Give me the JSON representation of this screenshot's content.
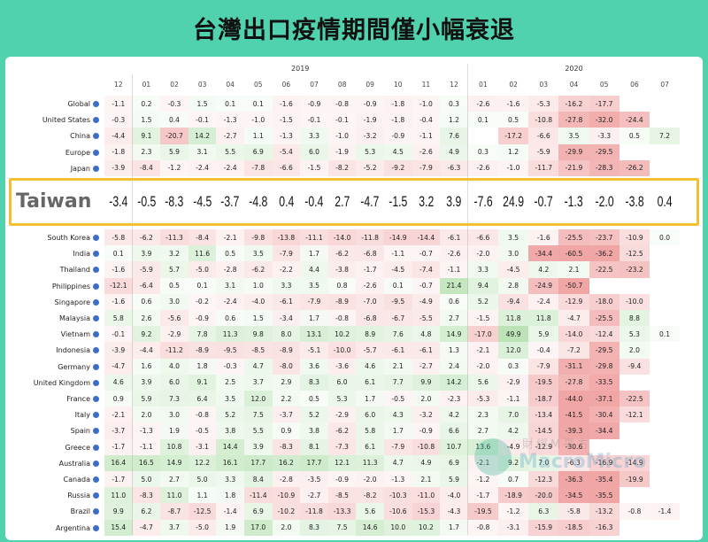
{
  "title": "台灣出口疫情期間僅小幅衰退",
  "watermark": {
    "line1": "財經M平方",
    "line2": "MacroMicro"
  },
  "chart_data": {
    "type": "table",
    "years": [
      {
        "label": "2019",
        "start": 1,
        "end": 12
      },
      {
        "label": "2020",
        "start": 13,
        "end": 19
      }
    ],
    "months": [
      "12",
      "01",
      "02",
      "03",
      "04",
      "05",
      "06",
      "07",
      "08",
      "09",
      "10",
      "11",
      "12",
      "01",
      "02",
      "03",
      "04",
      "05",
      "06",
      "07"
    ],
    "rows": [
      {
        "name": "Global",
        "values": [
          "-1.1",
          "0.2",
          "-0.3",
          "1.5",
          "0.1",
          "0.1",
          "-1.6",
          "-0.9",
          "-0.8",
          "-0.9",
          "-1.8",
          "-1.0",
          "0.3",
          "-2.6",
          "-1.6",
          "-5.3",
          "-16.2",
          "-17.7",
          "",
          ""
        ]
      },
      {
        "name": "United States",
        "values": [
          "-0.3",
          "1.5",
          "0.4",
          "-0.1",
          "-1.3",
          "-1.0",
          "-1.5",
          "-0.1",
          "-0.1",
          "-1.9",
          "-1.8",
          "-0.4",
          "1.2",
          "0.1",
          "0.5",
          "-10.8",
          "-27.8",
          "-32.0",
          "-24.4",
          ""
        ]
      },
      {
        "name": "China",
        "values": [
          "-4.4",
          "9.1",
          "-20.7",
          "14.2",
          "-2.7",
          "1.1",
          "-1.3",
          "3.3",
          "-1.0",
          "-3.2",
          "-0.9",
          "-1.1",
          "7.6",
          "",
          "-17.2",
          "-6.6",
          "3.5",
          "-3.3",
          "0.5",
          "7.2"
        ]
      },
      {
        "name": "Europe",
        "values": [
          "-1.8",
          "2.3",
          "5.9",
          "3.1",
          "5.5",
          "6.9",
          "-5.4",
          "6.0",
          "-1.9",
          "5.3",
          "4.5",
          "-2.6",
          "4.9",
          "0.3",
          "1.2",
          "-5.9",
          "-29.9",
          "-29.5",
          "",
          ""
        ]
      },
      {
        "name": "Japan",
        "values": [
          "-3.9",
          "-8.4",
          "-1.2",
          "-2.4",
          "-2.4",
          "-7.8",
          "-6.6",
          "-1.5",
          "-8.2",
          "-5.2",
          "-9.2",
          "-7.9",
          "-6.3",
          "-2.6",
          "-1.0",
          "-11.7",
          "-21.9",
          "-28.3",
          "-26.2",
          ""
        ]
      },
      {
        "name": "Taiwan",
        "highlight": true,
        "values": [
          "-3.4",
          "-0.5",
          "-8.3",
          "-4.5",
          "-3.7",
          "-4.8",
          "0.4",
          "-0.4",
          "2.7",
          "-4.7",
          "-1.5",
          "3.2",
          "3.9",
          "-7.6",
          "24.9",
          "-0.7",
          "-1.3",
          "-2.0",
          "-3.8",
          "0.4"
        ]
      },
      {
        "name": "South Korea",
        "values": [
          "-5.8",
          "-6.2",
          "-11.3",
          "-8.4",
          "-2.1",
          "-9.8",
          "-13.8",
          "-11.1",
          "-14.0",
          "-11.8",
          "-14.9",
          "-14.4",
          "-6.1",
          "-6.6",
          "3.5",
          "-1.6",
          "-25.5",
          "-23.7",
          "-10.9",
          "0.0"
        ]
      },
      {
        "name": "India",
        "values": [
          "0.1",
          "3.9",
          "3.2",
          "11.6",
          "0.5",
          "3.5",
          "-7.9",
          "1.7",
          "-6.2",
          "-6.8",
          "-1.1",
          "-0.7",
          "-2.6",
          "-2.0",
          "3.0",
          "-34.4",
          "-60.5",
          "-36.2",
          "-12.5",
          ""
        ]
      },
      {
        "name": "Thailand",
        "values": [
          "-1.6",
          "-5.9",
          "5.7",
          "-5.0",
          "-2.8",
          "-6.2",
          "-2.2",
          "4.4",
          "-3.8",
          "-1.7",
          "-4.5",
          "-7.4",
          "-1.1",
          "3.3",
          "-4.5",
          "4.2",
          "2.1",
          "-22.5",
          "-23.2",
          ""
        ]
      },
      {
        "name": "Philippines",
        "values": [
          "-12.1",
          "-6.4",
          "0.5",
          "0.1",
          "3.1",
          "1.0",
          "3.3",
          "3.5",
          "0.8",
          "-2.6",
          "0.1",
          "-0.7",
          "21.4",
          "9.4",
          "2.8",
          "-24.9",
          "-50.7",
          "",
          "",
          ""
        ]
      },
      {
        "name": "Singapore",
        "values": [
          "-1.6",
          "0.6",
          "3.0",
          "-0.2",
          "-2.4",
          "-4.0",
          "-6.1",
          "-7.9",
          "-8.9",
          "-7.0",
          "-9.5",
          "-4.9",
          "0.6",
          "5.2",
          "-9.4",
          "-2.4",
          "-12.9",
          "-18.0",
          "-10.0",
          ""
        ]
      },
      {
        "name": "Malaysia",
        "values": [
          "5.8",
          "2.6",
          "-5.6",
          "-0.9",
          "0.6",
          "1.5",
          "-3.4",
          "1.7",
          "-0.8",
          "-6.8",
          "-6.7",
          "-5.5",
          "2.7",
          "-1.5",
          "11.8",
          "11.8",
          "-4.7",
          "-25.5",
          "8.8",
          ""
        ]
      },
      {
        "name": "Vietnam",
        "values": [
          "-0.1",
          "9.2",
          "-2.9",
          "7.8",
          "11.3",
          "9.8",
          "8.0",
          "13.1",
          "10.2",
          "8.9",
          "7.6",
          "4.8",
          "14.9",
          "-17.0",
          "49.9",
          "5.9",
          "-14.0",
          "-12.4",
          "5.3",
          "0.1"
        ]
      },
      {
        "name": "Indonesia",
        "values": [
          "-3.9",
          "-4.4",
          "-11.2",
          "-8.9",
          "-9.5",
          "-8.5",
          "-8.9",
          "-5.1",
          "-10.0",
          "-5.7",
          "-6.1",
          "-6.1",
          "1.3",
          "-2.1",
          "12.0",
          "-0.4",
          "-7.2",
          "-29.5",
          "2.0",
          ""
        ]
      },
      {
        "name": "Germany",
        "values": [
          "-4.7",
          "1.6",
          "4.0",
          "1.8",
          "-0.3",
          "4.7",
          "-8.0",
          "3.6",
          "-3.6",
          "4.6",
          "2.1",
          "-2.7",
          "2.4",
          "-2.0",
          "0.3",
          "-7.9",
          "-31.1",
          "-29.8",
          "-9.4",
          ""
        ]
      },
      {
        "name": "United Kingdom",
        "values": [
          "4.6",
          "3.9",
          "6.0",
          "9.1",
          "2.5",
          "3.7",
          "2.9",
          "8.3",
          "6.0",
          "6.1",
          "7.7",
          "9.9",
          "14.2",
          "5.6",
          "-2.9",
          "-19.5",
          "-27.8",
          "-33.5",
          "",
          ""
        ]
      },
      {
        "name": "France",
        "values": [
          "0.9",
          "5.9",
          "7.3",
          "6.4",
          "3.5",
          "12.0",
          "2.2",
          "0.5",
          "5.3",
          "1.7",
          "-0.5",
          "2.0",
          "-2.3",
          "-5.3",
          "-1.1",
          "-18.7",
          "-44.0",
          "-37.1",
          "-22.5",
          ""
        ]
      },
      {
        "name": "Italy",
        "values": [
          "-2.1",
          "2.0",
          "3.0",
          "-0.8",
          "5.2",
          "7.5",
          "-3.7",
          "5.2",
          "-2.9",
          "6.0",
          "4.3",
          "-3.2",
          "4.2",
          "2.3",
          "7.0",
          "-13.4",
          "-41.5",
          "-30.4",
          "-12.1",
          ""
        ]
      },
      {
        "name": "Spain",
        "values": [
          "-3.7",
          "-1.3",
          "1.9",
          "-0.5",
          "3.8",
          "5.5",
          "0.9",
          "3.8",
          "-6.2",
          "5.8",
          "1.7",
          "-0.9",
          "6.6",
          "2.7",
          "4.2",
          "-14.5",
          "-39.3",
          "-34.4",
          "",
          ""
        ]
      },
      {
        "name": "Greece",
        "values": [
          "-1.7",
          "-1.1",
          "10.8",
          "-3.1",
          "14.4",
          "3.9",
          "-8.3",
          "8.1",
          "-7.3",
          "6.1",
          "-7.9",
          "-10.8",
          "10.7",
          "13.6",
          "-4.9",
          "-12.9",
          "-30.6",
          "",
          "",
          ""
        ]
      },
      {
        "name": "Australia",
        "values": [
          "16.4",
          "16.5",
          "14.9",
          "12.2",
          "16.1",
          "17.7",
          "16.2",
          "17.7",
          "12.1",
          "11.3",
          "4.7",
          "4.9",
          "6.9",
          "-2.1",
          "9.2",
          "7.0",
          "-6.3",
          "-16.9",
          "-14.9",
          ""
        ]
      },
      {
        "name": "Canada",
        "values": [
          "-1.7",
          "5.0",
          "2.7",
          "5.0",
          "3.3",
          "8.4",
          "-2.8",
          "-3.5",
          "-0.9",
          "-2.0",
          "-1.3",
          "2.1",
          "5.9",
          "-1.2",
          "0.7",
          "-12.3",
          "-36.3",
          "-35.4",
          "-19.9",
          ""
        ]
      },
      {
        "name": "Russia",
        "values": [
          "11.0",
          "-8.3",
          "11.0",
          "1.1",
          "1.8",
          "-11.4",
          "-10.9",
          "-2.7",
          "-8.5",
          "-8.2",
          "-10.3",
          "-11.0",
          "-4.0",
          "-1.7",
          "-18.9",
          "-20.0",
          "-34.5",
          "-35.5",
          "",
          ""
        ]
      },
      {
        "name": "Brazil",
        "values": [
          "9.9",
          "6.2",
          "-8.7",
          "-12.5",
          "-1.4",
          "6.9",
          "-10.2",
          "-11.8",
          "-13.3",
          "5.6",
          "-10.6",
          "-15.3",
          "-4.3",
          "-19.5",
          "-1.2",
          "6.3",
          "-5.8",
          "-13.2",
          "-0.8",
          "-1.4"
        ]
      },
      {
        "name": "Argentina",
        "values": [
          "15.4",
          "-4.7",
          "3.7",
          "-5.0",
          "1.9",
          "17.0",
          "2.0",
          "8.3",
          "7.5",
          "14.6",
          "10.0",
          "10.2",
          "1.7",
          "-0.8",
          "-3.1",
          "-15.9",
          "-18.5",
          "-16.3",
          "",
          ""
        ]
      }
    ]
  }
}
